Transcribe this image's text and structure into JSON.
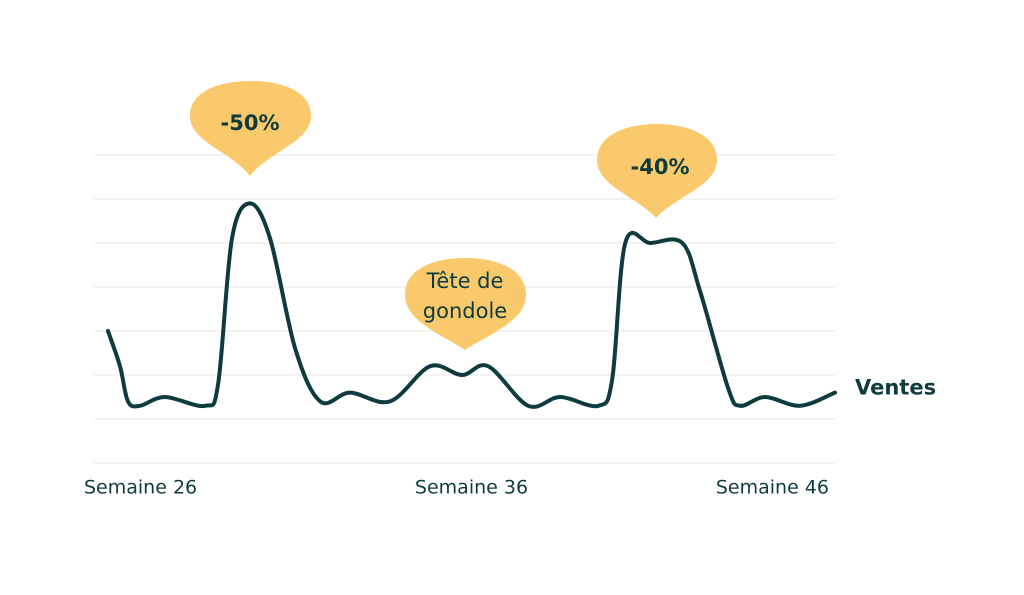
{
  "chart_data": {
    "type": "line",
    "x": [
      26,
      26.33,
      26.55,
      26.88,
      27.57,
      28.67,
      29.03,
      29.41,
      29.91,
      30.46,
      31.15,
      31.84,
      32.66,
      33.76,
      34.86,
      35.74,
      36.46,
      37.56,
      38.44,
      39.49,
      39.87,
      40.23,
      40.92,
      41.8,
      42.29,
      43.06,
      43.39,
      44.08,
      45.04,
      46
    ],
    "series": [
      {
        "name": "Ventes",
        "color": "#0d3b3e",
        "values": [
          3.0,
          2.2,
          1.4,
          1.3,
          1.5,
          1.3,
          1.8,
          5.1,
          5.9,
          5.1,
          2.6,
          1.4,
          1.6,
          1.4,
          2.2,
          2.0,
          2.2,
          1.3,
          1.5,
          1.3,
          1.9,
          5.0,
          5.0,
          5.0,
          3.9,
          1.7,
          1.3,
          1.5,
          1.3,
          1.6
        ]
      }
    ],
    "xlim": [
      26,
      46
    ],
    "xticks": [
      {
        "value": 26,
        "label": "Semaine 26"
      },
      {
        "value": 36,
        "label": "Semaine 36"
      },
      {
        "value": 46,
        "label": "Semaine 46"
      }
    ],
    "ylim": [
      0,
      7
    ],
    "ygrid": [
      0,
      1,
      2,
      3,
      4,
      5,
      6,
      7
    ],
    "grid": true,
    "annotations": [
      "-50%",
      [
        "Tête de",
        "gondole"
      ],
      "-40%"
    ],
    "annotation_color": "#f9c96b"
  }
}
